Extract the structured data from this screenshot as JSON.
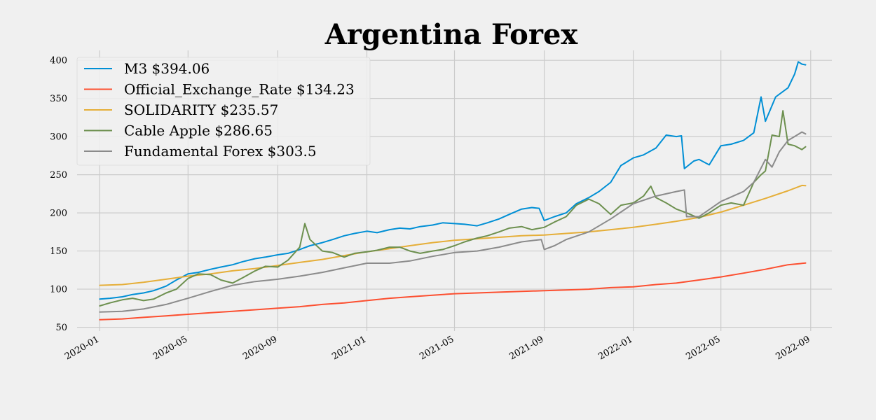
{
  "chart_data": {
    "type": "line",
    "title": "Argentina Forex",
    "xlabel": "",
    "ylabel": "",
    "x_axis": {
      "type": "date",
      "range": [
        "2019-12-01",
        "2022-09-30"
      ],
      "ticks": [
        "2020-01",
        "2020-05",
        "2020-09",
        "2021-01",
        "2021-05",
        "2021-09",
        "2022-01",
        "2022-05",
        "2022-09"
      ]
    },
    "y_axis": {
      "range": [
        45,
        413
      ],
      "ticks": [
        50,
        100,
        150,
        200,
        250,
        300,
        350,
        400
      ]
    },
    "grid": true,
    "legend_position": "top-left",
    "series": [
      {
        "name": "M3 $394.06",
        "color": "#008fd5",
        "points": [
          [
            "2020-01-01",
            87
          ],
          [
            "2020-01-15",
            88
          ],
          [
            "2020-02-01",
            90
          ],
          [
            "2020-02-15",
            93
          ],
          [
            "2020-03-01",
            95
          ],
          [
            "2020-03-15",
            98
          ],
          [
            "2020-04-01",
            104
          ],
          [
            "2020-04-15",
            112
          ],
          [
            "2020-05-01",
            120
          ],
          [
            "2020-05-15",
            122
          ],
          [
            "2020-06-01",
            126
          ],
          [
            "2020-06-15",
            129
          ],
          [
            "2020-07-01",
            132
          ],
          [
            "2020-07-15",
            136
          ],
          [
            "2020-08-01",
            140
          ],
          [
            "2020-08-15",
            142
          ],
          [
            "2020-09-01",
            145
          ],
          [
            "2020-09-15",
            147
          ],
          [
            "2020-10-01",
            152
          ],
          [
            "2020-10-15",
            157
          ],
          [
            "2020-11-01",
            161
          ],
          [
            "2020-11-15",
            165
          ],
          [
            "2020-12-01",
            170
          ],
          [
            "2020-12-15",
            173
          ],
          [
            "2021-01-01",
            176
          ],
          [
            "2021-01-15",
            174
          ],
          [
            "2021-02-01",
            178
          ],
          [
            "2021-02-15",
            180
          ],
          [
            "2021-03-01",
            179
          ],
          [
            "2021-03-15",
            182
          ],
          [
            "2021-04-01",
            184
          ],
          [
            "2021-04-15",
            187
          ],
          [
            "2021-05-01",
            186
          ],
          [
            "2021-05-15",
            185
          ],
          [
            "2021-06-01",
            183
          ],
          [
            "2021-06-15",
            187
          ],
          [
            "2021-07-01",
            192
          ],
          [
            "2021-07-15",
            198
          ],
          [
            "2021-08-01",
            205
          ],
          [
            "2021-08-15",
            207
          ],
          [
            "2021-08-25",
            206
          ],
          [
            "2021-09-01",
            190
          ],
          [
            "2021-09-15",
            195
          ],
          [
            "2021-10-01",
            200
          ],
          [
            "2021-10-15",
            212
          ],
          [
            "2021-11-01",
            220
          ],
          [
            "2021-11-15",
            228
          ],
          [
            "2021-12-01",
            240
          ],
          [
            "2021-12-15",
            262
          ],
          [
            "2022-01-01",
            272
          ],
          [
            "2022-01-15",
            276
          ],
          [
            "2022-02-01",
            285
          ],
          [
            "2022-02-15",
            302
          ],
          [
            "2022-03-01",
            300
          ],
          [
            "2022-03-08",
            301
          ],
          [
            "2022-03-12",
            258
          ],
          [
            "2022-03-25",
            268
          ],
          [
            "2022-04-01",
            270
          ],
          [
            "2022-04-15",
            263
          ],
          [
            "2022-05-01",
            288
          ],
          [
            "2022-05-15",
            290
          ],
          [
            "2022-06-01",
            295
          ],
          [
            "2022-06-15",
            305
          ],
          [
            "2022-06-25",
            352
          ],
          [
            "2022-07-01",
            320
          ],
          [
            "2022-07-15",
            352
          ],
          [
            "2022-08-01",
            364
          ],
          [
            "2022-08-10",
            382
          ],
          [
            "2022-08-15",
            398
          ],
          [
            "2022-08-20",
            395
          ],
          [
            "2022-08-25",
            394.06
          ]
        ]
      },
      {
        "name": "Official_Exchange_Rate $134.23",
        "color": "#fc4f30",
        "points": [
          [
            "2020-01-01",
            59.9
          ],
          [
            "2020-02-01",
            61
          ],
          [
            "2020-03-01",
            63
          ],
          [
            "2020-04-01",
            65
          ],
          [
            "2020-05-01",
            67
          ],
          [
            "2020-06-01",
            69
          ],
          [
            "2020-07-01",
            71
          ],
          [
            "2020-08-01",
            73
          ],
          [
            "2020-09-01",
            75
          ],
          [
            "2020-10-01",
            77
          ],
          [
            "2020-11-01",
            80
          ],
          [
            "2020-12-01",
            82
          ],
          [
            "2021-01-01",
            85
          ],
          [
            "2021-02-01",
            88
          ],
          [
            "2021-03-01",
            90
          ],
          [
            "2021-04-01",
            92
          ],
          [
            "2021-05-01",
            94
          ],
          [
            "2021-06-01",
            95
          ],
          [
            "2021-07-01",
            96
          ],
          [
            "2021-08-01",
            97
          ],
          [
            "2021-09-01",
            98
          ],
          [
            "2021-10-01",
            99
          ],
          [
            "2021-11-01",
            100
          ],
          [
            "2021-12-01",
            102
          ],
          [
            "2022-01-01",
            103
          ],
          [
            "2022-02-01",
            106
          ],
          [
            "2022-03-01",
            108
          ],
          [
            "2022-04-01",
            112
          ],
          [
            "2022-05-01",
            116
          ],
          [
            "2022-06-01",
            121
          ],
          [
            "2022-07-01",
            126
          ],
          [
            "2022-08-01",
            132
          ],
          [
            "2022-08-25",
            134.23
          ]
        ]
      },
      {
        "name": "SOLIDARITY $235.57",
        "color": "#e5ae38",
        "points": [
          [
            "2020-01-01",
            105
          ],
          [
            "2020-02-01",
            106
          ],
          [
            "2020-03-01",
            109
          ],
          [
            "2020-04-01",
            113
          ],
          [
            "2020-05-01",
            117
          ],
          [
            "2020-06-01",
            120
          ],
          [
            "2020-07-01",
            124
          ],
          [
            "2020-08-01",
            127
          ],
          [
            "2020-09-01",
            131
          ],
          [
            "2020-10-01",
            135
          ],
          [
            "2020-11-01",
            139
          ],
          [
            "2020-12-01",
            144
          ],
          [
            "2021-01-01",
            149
          ],
          [
            "2021-02-01",
            153
          ],
          [
            "2021-03-01",
            157
          ],
          [
            "2021-04-01",
            161
          ],
          [
            "2021-05-01",
            164
          ],
          [
            "2021-06-01",
            166
          ],
          [
            "2021-07-01",
            168
          ],
          [
            "2021-08-01",
            170
          ],
          [
            "2021-09-01",
            171
          ],
          [
            "2021-10-01",
            173
          ],
          [
            "2021-11-01",
            175
          ],
          [
            "2021-12-01",
            178
          ],
          [
            "2022-01-01",
            181
          ],
          [
            "2022-02-01",
            185
          ],
          [
            "2022-03-01",
            189
          ],
          [
            "2022-04-01",
            194
          ],
          [
            "2022-05-01",
            201
          ],
          [
            "2022-06-01",
            210
          ],
          [
            "2022-07-01",
            219
          ],
          [
            "2022-08-01",
            229
          ],
          [
            "2022-08-20",
            236
          ],
          [
            "2022-08-25",
            235.57
          ]
        ]
      },
      {
        "name": "Cable Apple $286.65",
        "color": "#6d904f",
        "points": [
          [
            "2020-01-01",
            78
          ],
          [
            "2020-01-15",
            82
          ],
          [
            "2020-02-01",
            86
          ],
          [
            "2020-02-15",
            88
          ],
          [
            "2020-03-01",
            85
          ],
          [
            "2020-03-15",
            87
          ],
          [
            "2020-04-01",
            95
          ],
          [
            "2020-04-15",
            100
          ],
          [
            "2020-05-01",
            114
          ],
          [
            "2020-05-15",
            120
          ],
          [
            "2020-06-01",
            119
          ],
          [
            "2020-06-15",
            112
          ],
          [
            "2020-07-01",
            108
          ],
          [
            "2020-07-15",
            115
          ],
          [
            "2020-08-01",
            124
          ],
          [
            "2020-08-15",
            130
          ],
          [
            "2020-09-01",
            129
          ],
          [
            "2020-09-15",
            138
          ],
          [
            "2020-10-01",
            155
          ],
          [
            "2020-10-08",
            186
          ],
          [
            "2020-10-15",
            165
          ],
          [
            "2020-11-01",
            150
          ],
          [
            "2020-11-15",
            148
          ],
          [
            "2020-12-01",
            142
          ],
          [
            "2020-12-15",
            147
          ],
          [
            "2021-01-01",
            149
          ],
          [
            "2021-01-15",
            151
          ],
          [
            "2021-02-01",
            155
          ],
          [
            "2021-02-15",
            155
          ],
          [
            "2021-03-01",
            150
          ],
          [
            "2021-03-15",
            147
          ],
          [
            "2021-04-01",
            150
          ],
          [
            "2021-04-15",
            152
          ],
          [
            "2021-05-01",
            157
          ],
          [
            "2021-05-15",
            162
          ],
          [
            "2021-06-01",
            167
          ],
          [
            "2021-06-15",
            170
          ],
          [
            "2021-07-01",
            175
          ],
          [
            "2021-07-15",
            180
          ],
          [
            "2021-08-01",
            182
          ],
          [
            "2021-08-15",
            178
          ],
          [
            "2021-09-01",
            181
          ],
          [
            "2021-09-15",
            188
          ],
          [
            "2021-10-01",
            195
          ],
          [
            "2021-10-15",
            210
          ],
          [
            "2021-11-01",
            218
          ],
          [
            "2021-11-15",
            212
          ],
          [
            "2021-12-01",
            198
          ],
          [
            "2021-12-15",
            210
          ],
          [
            "2022-01-01",
            213
          ],
          [
            "2022-01-15",
            222
          ],
          [
            "2022-01-25",
            235
          ],
          [
            "2022-02-01",
            220
          ],
          [
            "2022-02-15",
            213
          ],
          [
            "2022-03-01",
            205
          ],
          [
            "2022-03-15",
            200
          ],
          [
            "2022-04-01",
            193
          ],
          [
            "2022-04-15",
            200
          ],
          [
            "2022-05-01",
            210
          ],
          [
            "2022-05-15",
            213
          ],
          [
            "2022-06-01",
            210
          ],
          [
            "2022-06-15",
            240
          ],
          [
            "2022-06-25",
            250
          ],
          [
            "2022-07-01",
            255
          ],
          [
            "2022-07-10",
            302
          ],
          [
            "2022-07-20",
            300
          ],
          [
            "2022-07-25",
            334
          ],
          [
            "2022-08-01",
            290
          ],
          [
            "2022-08-10",
            288
          ],
          [
            "2022-08-20",
            283
          ],
          [
            "2022-08-25",
            286.65
          ]
        ]
      },
      {
        "name": "Fundamental Forex $303.5",
        "color": "#8b8b8b",
        "points": [
          [
            "2020-01-01",
            70
          ],
          [
            "2020-02-01",
            71
          ],
          [
            "2020-03-01",
            74
          ],
          [
            "2020-04-01",
            80
          ],
          [
            "2020-05-01",
            88
          ],
          [
            "2020-06-01",
            97
          ],
          [
            "2020-07-01",
            105
          ],
          [
            "2020-08-01",
            110
          ],
          [
            "2020-09-01",
            113
          ],
          [
            "2020-10-01",
            117
          ],
          [
            "2020-11-01",
            122
          ],
          [
            "2020-12-01",
            128
          ],
          [
            "2021-01-01",
            134
          ],
          [
            "2021-02-01",
            134
          ],
          [
            "2021-03-01",
            137
          ],
          [
            "2021-04-01",
            143
          ],
          [
            "2021-05-01",
            148
          ],
          [
            "2021-06-01",
            150
          ],
          [
            "2021-07-01",
            155
          ],
          [
            "2021-08-01",
            162
          ],
          [
            "2021-08-28",
            165
          ],
          [
            "2021-09-01",
            152
          ],
          [
            "2021-09-15",
            157
          ],
          [
            "2021-10-01",
            165
          ],
          [
            "2021-11-01",
            175
          ],
          [
            "2021-12-01",
            192
          ],
          [
            "2022-01-01",
            212
          ],
          [
            "2022-02-01",
            222
          ],
          [
            "2022-03-01",
            228
          ],
          [
            "2022-03-12",
            230
          ],
          [
            "2022-03-15",
            195
          ],
          [
            "2022-04-01",
            195
          ],
          [
            "2022-05-01",
            215
          ],
          [
            "2022-06-01",
            228
          ],
          [
            "2022-06-15",
            240
          ],
          [
            "2022-07-01",
            270
          ],
          [
            "2022-07-10",
            260
          ],
          [
            "2022-07-20",
            280
          ],
          [
            "2022-08-01",
            295
          ],
          [
            "2022-08-15",
            303
          ],
          [
            "2022-08-20",
            306
          ],
          [
            "2022-08-25",
            303.5
          ]
        ]
      }
    ]
  }
}
